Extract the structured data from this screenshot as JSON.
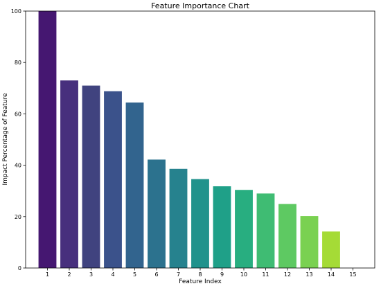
{
  "chart_data": {
    "type": "bar",
    "title": "Feature Importance Chart",
    "xlabel": "Feature Index",
    "ylabel": "Impact Percentage of Feature",
    "categories": [
      "1",
      "2",
      "3",
      "4",
      "5",
      "6",
      "7",
      "8",
      "9",
      "10",
      "11",
      "12",
      "13",
      "14",
      "15"
    ],
    "values": [
      100,
      73,
      71,
      68.8,
      64.4,
      42.2,
      38.6,
      34.6,
      31.8,
      30.4,
      29,
      24.9,
      20.2,
      14.2,
      0
    ],
    "ylim": [
      0,
      100
    ],
    "yticks": [
      0,
      20,
      40,
      60,
      80,
      100
    ],
    "grid": false,
    "legend": "none",
    "colors": [
      "#451771",
      "#472f7d",
      "#40437f",
      "#3b528b",
      "#32648e",
      "#2c728e",
      "#26828e",
      "#20928c",
      "#1fa088",
      "#28ae80",
      "#3fbc73",
      "#5ec962",
      "#7ad151",
      "#a5db36",
      "#cde11d"
    ]
  }
}
